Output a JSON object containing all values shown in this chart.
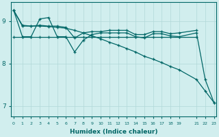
{
  "xlabel": "Humidex (Indice chaleur)",
  "bg_color": "#d1eeee",
  "grid_color": "#b0d8d8",
  "line_color": "#006666",
  "lines": [
    {
      "x": [
        0,
        1,
        2,
        3,
        4,
        5,
        6,
        7,
        8,
        9,
        10,
        11,
        12,
        13,
        14,
        15,
        16,
        17,
        18,
        19,
        21
      ],
      "y": [
        8.63,
        8.63,
        8.63,
        8.63,
        8.63,
        8.63,
        8.63,
        8.63,
        8.63,
        8.63,
        8.63,
        8.63,
        8.63,
        8.63,
        8.63,
        8.63,
        8.63,
        8.63,
        8.63,
        8.63,
        8.63
      ]
    },
    {
      "x": [
        0,
        1,
        2,
        3,
        4,
        5,
        6,
        7,
        8,
        9,
        10,
        11,
        12,
        13,
        14,
        15,
        16,
        17,
        18,
        19,
        21,
        22,
        23
      ],
      "y": [
        9.25,
        8.63,
        8.63,
        9.05,
        9.08,
        8.63,
        8.63,
        8.27,
        8.55,
        8.68,
        8.72,
        8.72,
        8.72,
        8.72,
        8.63,
        8.6,
        8.7,
        8.7,
        8.65,
        8.63,
        8.72,
        7.62,
        7.08
      ]
    },
    {
      "x": [
        0,
        1,
        2,
        3,
        4,
        5,
        6,
        7,
        8,
        9,
        10,
        11,
        12,
        13,
        14,
        15,
        16,
        17,
        18,
        19,
        21
      ],
      "y": [
        9.25,
        8.88,
        8.88,
        8.9,
        8.88,
        8.88,
        8.85,
        8.6,
        8.72,
        8.75,
        8.75,
        8.78,
        8.78,
        8.78,
        8.68,
        8.68,
        8.75,
        8.75,
        8.7,
        8.72,
        8.78
      ]
    },
    {
      "x": [
        0,
        1,
        2,
        3,
        4,
        5,
        6,
        7,
        8,
        9,
        10,
        11,
        12,
        13,
        14,
        15,
        16,
        17,
        18,
        19,
        21,
        22,
        23
      ],
      "y": [
        9.25,
        8.9,
        8.88,
        8.88,
        8.87,
        8.85,
        8.83,
        8.78,
        8.72,
        8.65,
        8.58,
        8.5,
        8.43,
        8.35,
        8.27,
        8.17,
        8.1,
        8.02,
        7.93,
        7.85,
        7.62,
        7.35,
        7.08
      ]
    }
  ],
  "xticks": [
    0,
    1,
    2,
    3,
    4,
    5,
    6,
    7,
    8,
    9,
    10,
    11,
    12,
    13,
    14,
    15,
    16,
    17,
    18,
    19,
    21,
    22,
    23
  ],
  "xlim": [
    -0.3,
    23.3
  ],
  "ylim": [
    6.75,
    9.45
  ],
  "yticks": [
    7,
    8,
    9
  ]
}
